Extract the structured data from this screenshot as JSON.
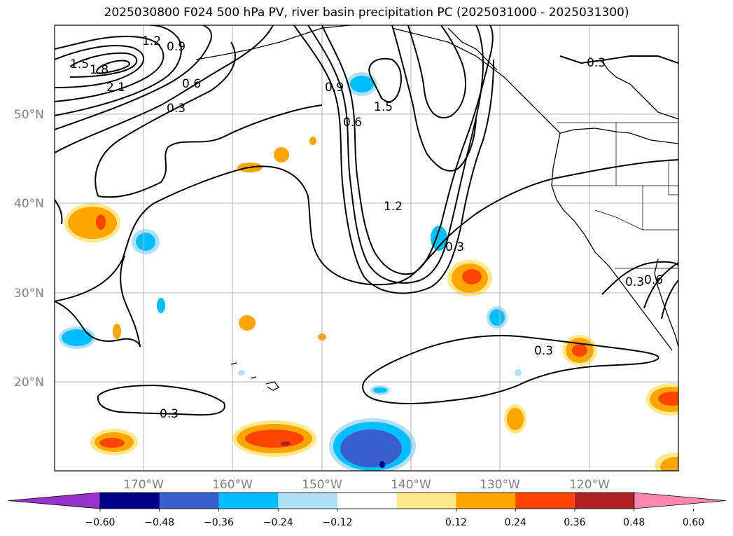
{
  "chart_data": {
    "type": "contour-map",
    "title": "2025030800 F024 500 hPa PV, river basin precipitation PC (2025031000 - 2025031300)",
    "lat_ticks": [
      "50°N",
      "40°N",
      "30°N",
      "20°N"
    ],
    "lon_ticks": [
      "170°W",
      "160°W",
      "150°W",
      "140°W",
      "130°W",
      "120°W"
    ],
    "lat_range": [
      10,
      60
    ],
    "lon_range": [
      -180,
      -110
    ],
    "grid": true,
    "contour_labels": [
      "1.5",
      "1.2",
      "0.9",
      "1.8",
      "2.1",
      "0.6",
      "0.3",
      "0.9",
      "0.6",
      "1.5",
      "1.2",
      "0.3",
      "0.3",
      "0.3",
      "0.3",
      "0.3",
      "0.6"
    ],
    "colorbar": {
      "ticks": [
        "−0.60",
        "−0.48",
        "−0.36",
        "−0.24",
        "−0.12",
        "0.12",
        "0.24",
        "0.36",
        "0.48",
        "0.60"
      ],
      "colors": [
        "#9932cc",
        "#00008b",
        "#3a5fcd",
        "#00bfff",
        "#b0e0f8",
        "#ffffff",
        "#ffe88a",
        "#ffa500",
        "#ff4500",
        "#b22222",
        "#ff88aa"
      ],
      "extend": "both"
    }
  }
}
